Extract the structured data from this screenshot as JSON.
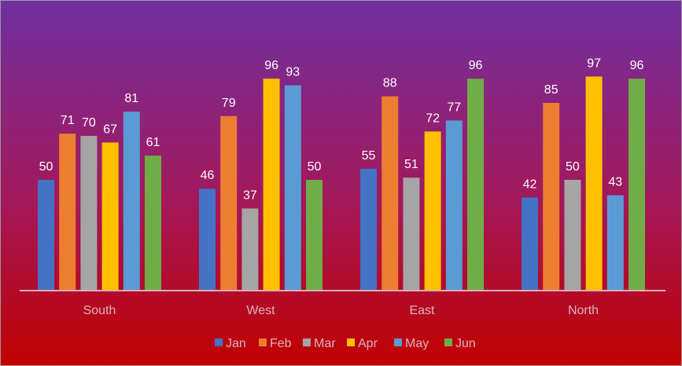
{
  "chart_data": {
    "type": "bar",
    "categories": [
      "South",
      "West",
      "East",
      "North"
    ],
    "series": [
      {
        "name": "Jan",
        "color": "#4472c4",
        "values": [
          50,
          46,
          55,
          42
        ]
      },
      {
        "name": "Feb",
        "color": "#ed7d31",
        "values": [
          71,
          79,
          88,
          85
        ]
      },
      {
        "name": "Mar",
        "color": "#a5a5a5",
        "values": [
          70,
          37,
          51,
          50
        ]
      },
      {
        "name": "Apr",
        "color": "#ffc000",
        "values": [
          67,
          96,
          72,
          97
        ]
      },
      {
        "name": "May",
        "color": "#5b9bd5",
        "values": [
          81,
          93,
          77,
          43
        ]
      },
      {
        "name": "Jun",
        "color": "#70ad47",
        "values": [
          61,
          50,
          96,
          96
        ]
      }
    ],
    "ylim": [
      0,
      100
    ],
    "grid": false,
    "legend_position": "bottom",
    "data_labels": true
  }
}
